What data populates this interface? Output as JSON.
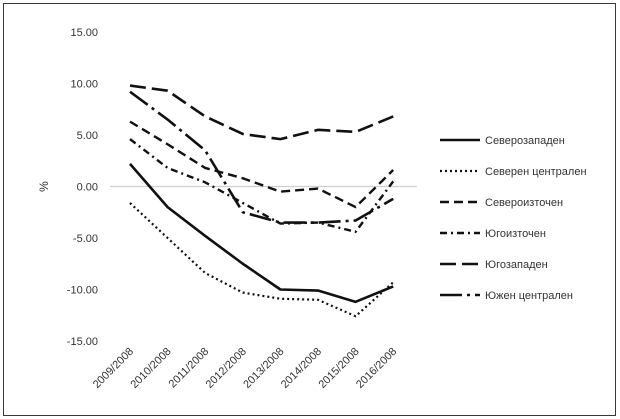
{
  "chart_data": {
    "type": "line",
    "title": "",
    "xlabel": "",
    "ylabel": "%",
    "ylim": [
      -15,
      15
    ],
    "yticks": [
      "15.00",
      "10.00",
      "5.00",
      "0.00",
      "-5.00",
      "-10.00",
      "-15.00"
    ],
    "categories": [
      "2009/2008",
      "2010/2008",
      "2011/2008",
      "2012/2008",
      "2013/2008",
      "2014/2008",
      "2015/2008",
      "2016/2008"
    ],
    "grid": false,
    "legend_position": "right",
    "series": [
      {
        "name": "Северозападен",
        "style": "solid",
        "values": [
          2.2,
          -2.0,
          -4.8,
          -7.5,
          -10.0,
          -10.1,
          -11.2,
          -9.7
        ]
      },
      {
        "name": "Северен централен",
        "style": "dotted",
        "values": [
          -1.6,
          -5.0,
          -8.4,
          -10.3,
          -10.9,
          -11.0,
          -12.6,
          -9.3
        ]
      },
      {
        "name": "Североизточен",
        "style": "dashed",
        "values": [
          6.3,
          4.1,
          1.8,
          0.8,
          -0.5,
          -0.2,
          -2.0,
          1.6
        ]
      },
      {
        "name": "Югоизточен",
        "style": "dashdot",
        "values": [
          4.6,
          1.8,
          0.4,
          -1.6,
          -3.6,
          -3.5,
          -4.4,
          0.5
        ]
      },
      {
        "name": "Югозападен",
        "style": "longdash",
        "values": [
          9.8,
          9.3,
          6.8,
          5.1,
          4.6,
          5.5,
          5.3,
          6.8
        ]
      },
      {
        "name": "Южен централен",
        "style": "dashdotdot",
        "values": [
          9.2,
          6.5,
          3.5,
          -2.5,
          -3.5,
          -3.5,
          -3.3,
          -1.2
        ]
      }
    ]
  }
}
